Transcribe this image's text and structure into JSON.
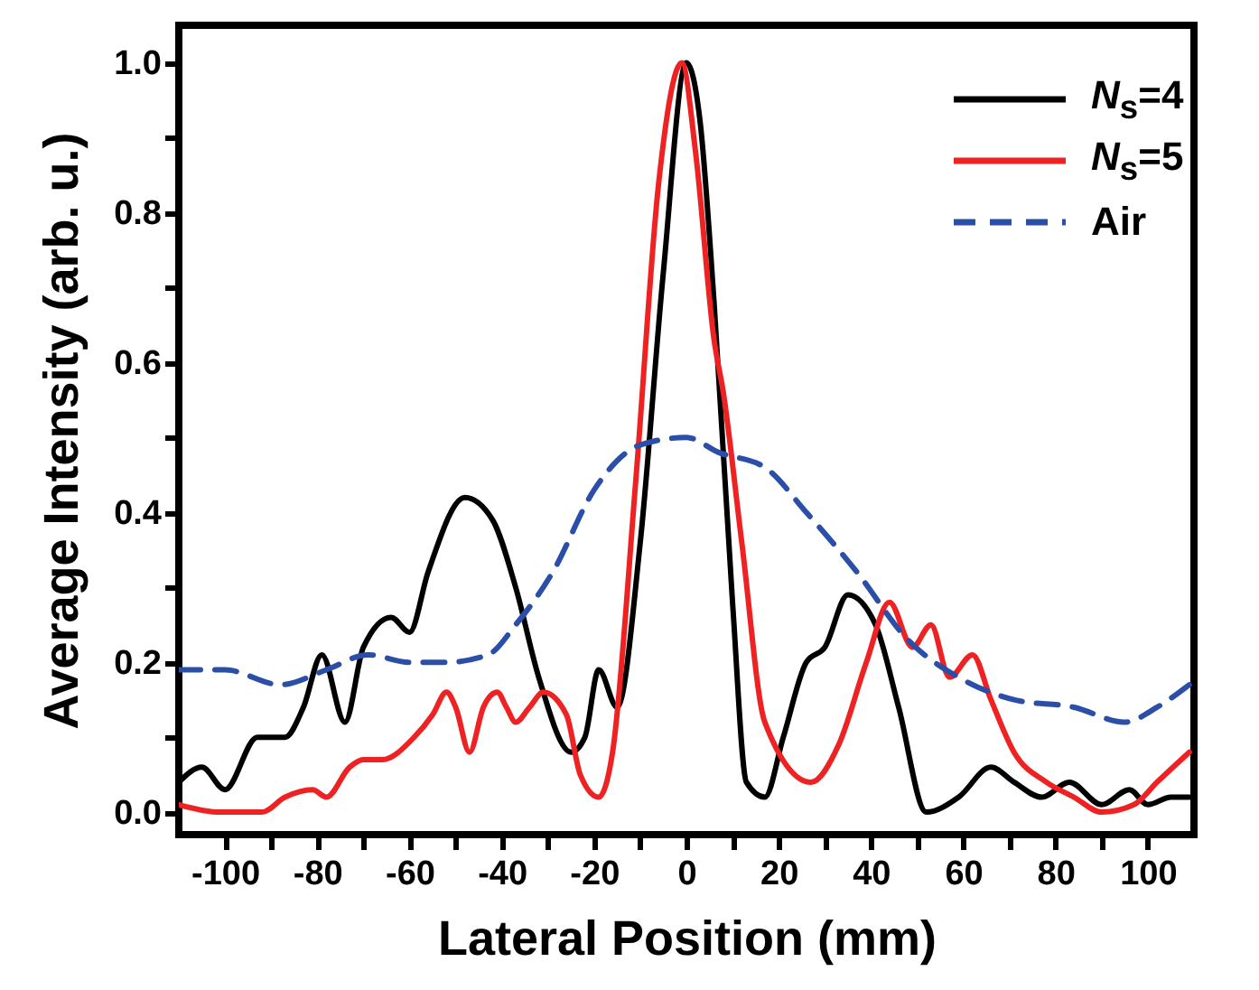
{
  "chart_data": {
    "type": "line",
    "xlabel": "Lateral Position (mm)",
    "ylabel": "Average Intensity (arb. u.)",
    "xlim": [
      -110,
      110
    ],
    "ylim": [
      -0.03,
      1.05
    ],
    "xticks": [
      -100,
      {
        "value": -90,
        "label": null
      },
      -80,
      {
        "value": -70,
        "label": null
      },
      -60,
      {
        "value": -50,
        "label": null
      },
      -40,
      {
        "value": -30,
        "label": null
      },
      -20,
      {
        "value": -10,
        "label": null
      },
      0,
      {
        "value": 10,
        "label": null
      },
      20,
      {
        "value": 30,
        "label": null
      },
      40,
      {
        "value": 50,
        "label": null
      },
      60,
      {
        "value": 70,
        "label": null
      },
      80,
      {
        "value": 90,
        "label": null
      },
      100
    ],
    "yticks": [
      {
        "value": 0,
        "label": "0.0"
      },
      {
        "value": 0.1,
        "label": null
      },
      0.2,
      {
        "value": 0.3,
        "label": null
      },
      0.4,
      {
        "value": 0.5,
        "label": null
      },
      0.6,
      {
        "value": 0.7,
        "label": null
      },
      0.8,
      {
        "value": 0.9,
        "label": null
      },
      {
        "value": 1,
        "label": "1.0"
      }
    ],
    "grid": false,
    "legend": "top right",
    "marker": "none",
    "series": [
      {
        "name": "N$_{s}$=4",
        "color": "#000000",
        "line_style": "solid",
        "x": [
          -110,
          -105,
          -100,
          -93,
          -87,
          -83,
          -79,
          -74,
          -70,
          -64,
          -60,
          -56,
          -48,
          -42,
          -37,
          -32,
          -25,
          -22,
          -19,
          -15,
          -10,
          -5,
          0,
          3,
          6,
          10,
          13,
          17,
          21,
          26,
          30,
          35,
          41,
          46,
          52,
          59,
          66,
          71,
          77,
          83,
          90,
          96,
          100,
          105,
          109
        ],
        "values": [
          0.04,
          0.06,
          0.03,
          0.1,
          0.1,
          0.14,
          0.21,
          0.12,
          0.22,
          0.26,
          0.24,
          0.32,
          0.42,
          0.39,
          0.3,
          0.18,
          0.08,
          0.1,
          0.19,
          0.14,
          0.36,
          0.72,
          1.0,
          0.92,
          0.68,
          0.28,
          0.04,
          0.02,
          0.1,
          0.2,
          0.22,
          0.29,
          0.25,
          0.14,
          0.0,
          0.02,
          0.06,
          0.04,
          0.02,
          0.04,
          0.01,
          0.03,
          0.01,
          0.02,
          0.02
        ]
      },
      {
        "name": "N$_{s}$=5",
        "color": "#ee2222",
        "line_style": "solid",
        "x": [
          -110,
          -101,
          -92,
          -87,
          -81,
          -78,
          -73,
          -70,
          -66,
          -59,
          -55,
          -52,
          -50,
          -47,
          -44,
          -41,
          -39,
          -37,
          -34,
          -31,
          -26,
          -23,
          -19,
          -16,
          -11,
          -6,
          -1,
          2,
          6,
          8,
          12,
          17,
          27,
          33,
          39,
          44,
          49,
          53,
          57,
          62,
          66,
          71,
          78,
          84,
          90,
          97,
          102,
          109
        ],
        "values": [
          0.01,
          0.0,
          0.0,
          0.02,
          0.03,
          0.02,
          0.06,
          0.07,
          0.07,
          0.1,
          0.13,
          0.16,
          0.14,
          0.08,
          0.14,
          0.16,
          0.14,
          0.12,
          0.14,
          0.16,
          0.13,
          0.05,
          0.02,
          0.08,
          0.44,
          0.84,
          1.0,
          0.88,
          0.63,
          0.56,
          0.36,
          0.12,
          0.04,
          0.09,
          0.2,
          0.28,
          0.22,
          0.25,
          0.18,
          0.21,
          0.15,
          0.08,
          0.04,
          0.02,
          0.0,
          0.01,
          0.04,
          0.08
        ]
      },
      {
        "name": "Air",
        "color": "#2b4ea8",
        "line_style": "dashed",
        "x": [
          -110,
          -100,
          -88,
          -78,
          -69,
          -60,
          -52,
          -43,
          -37,
          -29,
          -20,
          -10,
          0,
          7,
          17,
          26,
          37,
          48,
          59,
          71,
          84,
          95,
          102,
          109
        ],
        "values": [
          0.19,
          0.19,
          0.17,
          0.19,
          0.21,
          0.2,
          0.2,
          0.21,
          0.25,
          0.32,
          0.43,
          0.49,
          0.5,
          0.48,
          0.46,
          0.4,
          0.32,
          0.23,
          0.18,
          0.15,
          0.14,
          0.12,
          0.14,
          0.17
        ]
      }
    ]
  }
}
